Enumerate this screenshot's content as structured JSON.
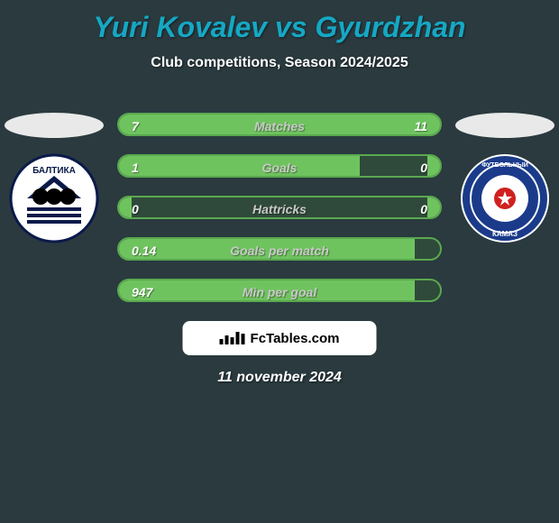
{
  "background_color": "#2a3a3f",
  "title": "Yuri Kovalev vs Gyurdzhan",
  "title_color": "#15a8c4",
  "subtitle": "Club competitions, Season 2024/2025",
  "subtitle_color": "#ffffff",
  "date": "11 november 2024",
  "date_color": "#ffffff",
  "brand": "FcTables.com",
  "brand_bg": "#ffffff",
  "brand_text_color": "#000000",
  "player_left": {
    "oval_color": "#e9e9e9",
    "club_label": "БАЛТИКА",
    "club_bg": "#ffffff",
    "club_accent": "#0a1a4a"
  },
  "player_right": {
    "oval_color": "#e9e9e9",
    "club_label": "КАМАЗ",
    "club_bg": "#1b3b8a",
    "club_accent": "#ffffff"
  },
  "stats": {
    "row_bg": "#2f4a3a",
    "border_color": "#5aa84f",
    "left_fill_color": "#6fc35f",
    "right_fill_color": "#6fc35f",
    "label_color": "#c9c9c9",
    "value_color": "#ffffff",
    "rows": [
      {
        "label": "Matches",
        "left": "7",
        "right": "11",
        "left_pct": 0.39,
        "right_pct": 0.61
      },
      {
        "label": "Goals",
        "left": "1",
        "right": "0",
        "left_pct": 0.75,
        "right_pct": 0.04
      },
      {
        "label": "Hattricks",
        "left": "0",
        "right": "0",
        "left_pct": 0.04,
        "right_pct": 0.04
      },
      {
        "label": "Goals per match",
        "left": "0.14",
        "right": "",
        "left_pct": 0.92,
        "right_pct": 0.0
      },
      {
        "label": "Min per goal",
        "left": "947",
        "right": "",
        "left_pct": 0.92,
        "right_pct": 0.0
      }
    ]
  }
}
